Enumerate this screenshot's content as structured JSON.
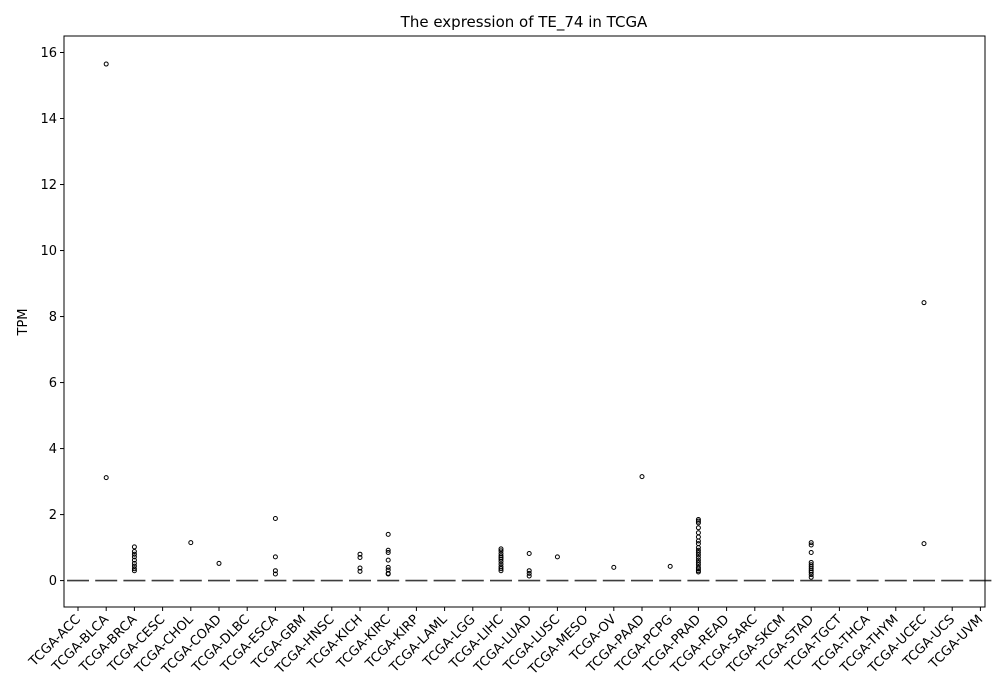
{
  "chart_data": {
    "type": "box",
    "title": "The expression of TE_74 in TCGA",
    "xlabel": "",
    "ylabel": "TPM",
    "ylim": [
      -0.8,
      16.5
    ],
    "yticks": [
      0,
      2,
      4,
      6,
      8,
      10,
      12,
      14,
      16
    ],
    "grid": false,
    "categories": [
      "TCGA-ACC",
      "TCGA-BLCA",
      "TCGA-BRCA",
      "TCGA-CESC",
      "TCGA-CHOL",
      "TCGA-COAD",
      "TCGA-DLBC",
      "TCGA-ESCA",
      "TCGA-GBM",
      "TCGA-HNSC",
      "TCGA-KICH",
      "TCGA-KIRC",
      "TCGA-KIRP",
      "TCGA-LAML",
      "TCGA-LGG",
      "TCGA-LIHC",
      "TCGA-LUAD",
      "TCGA-LUSC",
      "TCGA-MESO",
      "TCGA-OV",
      "TCGA-PAAD",
      "TCGA-PCPG",
      "TCGA-PRAD",
      "TCGA-READ",
      "TCGA-SARC",
      "TCGA-SKCM",
      "TCGA-STAD",
      "TCGA-TGCT",
      "TCGA-THCA",
      "TCGA-THYM",
      "TCGA-UCEC",
      "TCGA-UCS",
      "TCGA-UVM"
    ],
    "box_median": [
      0,
      0,
      0,
      0,
      0,
      0,
      0,
      0,
      0,
      0,
      0,
      0,
      0,
      0,
      0,
      0,
      0,
      0,
      0,
      0,
      0,
      0,
      0,
      0,
      0,
      0,
      0,
      0,
      0,
      0,
      0,
      0,
      0
    ],
    "outliers": [
      [],
      [
        15.65,
        3.12
      ],
      [
        1.02,
        0.88,
        0.8,
        0.72,
        0.62,
        0.52,
        0.44,
        0.36,
        0.3
      ],
      [],
      [
        1.15
      ],
      [
        0.52
      ],
      [],
      [
        1.88,
        0.72,
        0.3,
        0.2
      ],
      [],
      [],
      [
        0.8,
        0.7,
        0.38,
        0.28
      ],
      [
        1.4,
        0.92,
        0.85,
        0.62,
        0.4,
        0.32,
        0.22,
        0.2
      ],
      [],
      [],
      [],
      [
        0.96,
        0.9,
        0.82,
        0.75,
        0.7,
        0.65,
        0.58,
        0.5,
        0.42,
        0.36,
        0.3
      ],
      [
        0.82,
        0.3,
        0.22,
        0.14
      ],
      [
        0.72
      ],
      [],
      [
        0.4
      ],
      [
        3.15
      ],
      [
        0.43
      ],
      [
        1.85,
        1.8,
        1.75,
        1.6,
        1.45,
        1.32,
        1.2,
        1.12,
        1.0,
        0.92,
        0.85,
        0.78,
        0.7,
        0.62,
        0.55,
        0.48,
        0.4,
        0.35,
        0.3,
        0.26
      ],
      [],
      [],
      [],
      [
        1.15,
        1.08,
        0.85,
        0.55,
        0.48,
        0.42,
        0.36,
        0.3,
        0.25,
        0.18,
        0.1
      ],
      [],
      [],
      [],
      [
        8.42,
        1.12
      ],
      [],
      []
    ]
  }
}
